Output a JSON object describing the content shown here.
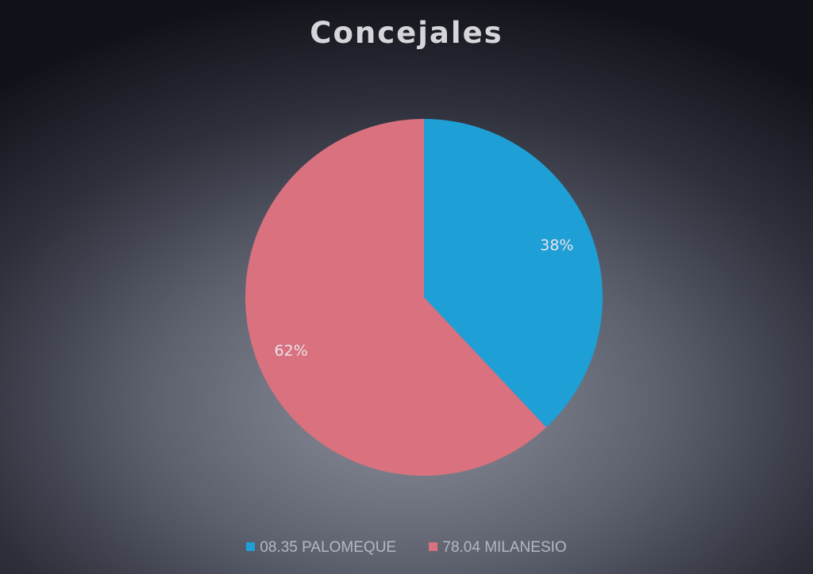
{
  "chart_data": {
    "type": "pie",
    "title": "Concejales",
    "slices": [
      {
        "name": "08.35 PALOMEQUE",
        "value": 38,
        "label": "38%",
        "color": "#1e9fd6"
      },
      {
        "name": "78.04 MILANESIO",
        "value": 62,
        "label": "62%",
        "color": "#d9717f"
      }
    ],
    "start_angle": "12 o'clock, clockwise",
    "legend": "bottom"
  }
}
